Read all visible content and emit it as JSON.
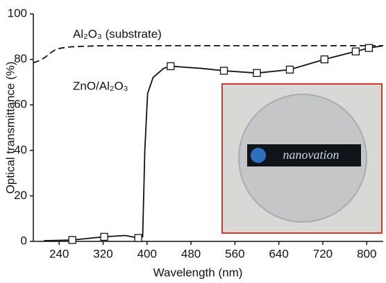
{
  "chart_data": {
    "type": "line",
    "x_label": "Wavelength (nm)",
    "y_label": "Optical transmittance (%)",
    "xlim": [
      193,
      830
    ],
    "xticks": [
      240,
      320,
      400,
      480,
      560,
      640,
      720,
      800
    ],
    "ylim": [
      0,
      100
    ],
    "yticks": [
      0,
      20,
      40,
      60,
      80,
      100
    ],
    "series": [
      {
        "name": "Al₂O₃ (substrate)",
        "color": "#111111",
        "dash": true,
        "x": [
          193,
          205,
          215,
          225,
          235,
          245,
          260,
          280,
          320,
          400,
          500,
          600,
          700,
          800,
          830
        ],
        "values": [
          78.5,
          79.5,
          81,
          83,
          84.5,
          85,
          85.5,
          85.7,
          86,
          86,
          86,
          86,
          86,
          86,
          86
        ]
      },
      {
        "name": "ZnO/Al₂O₃",
        "color": "#111111",
        "dash": false,
        "x": [
          212,
          264,
          322,
          360,
          384,
          392,
          396,
          401,
          411,
          430,
          443,
          500,
          540,
          600,
          660,
          723,
          780,
          804,
          830
        ],
        "values": [
          0.3,
          0.6,
          2,
          2.6,
          1.5,
          2,
          40,
          65,
          72,
          76,
          77,
          76,
          75,
          74,
          75.5,
          80,
          83.5,
          85,
          86
        ]
      },
      {
        "marker": "square",
        "color": "#111111",
        "x": [
          264,
          322,
          384,
          443,
          540,
          600,
          660,
          723,
          780,
          804
        ],
        "values": [
          0.6,
          2,
          1.5,
          77,
          75,
          74,
          75.5,
          80,
          83.5,
          85
        ]
      }
    ],
    "inset_label": "nanovation"
  }
}
